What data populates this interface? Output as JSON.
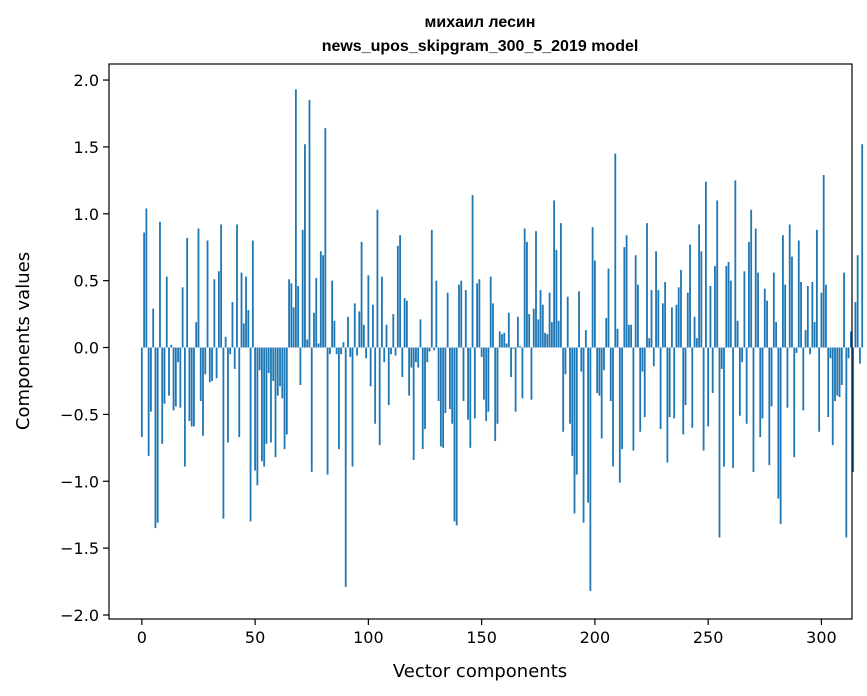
{
  "chart_data": {
    "type": "bar",
    "title": "михаил лесин",
    "subtitle": "news_upos_skipgram_300_5_2019 model",
    "xlabel": "Vector components",
    "ylabel": "Components values",
    "xlim": [
      -14.5,
      313.5
    ],
    "ylim": [
      -2.03,
      2.12
    ],
    "xticks": [
      0,
      50,
      100,
      150,
      200,
      250,
      300
    ],
    "yticks": [
      -2.0,
      -1.5,
      -1.0,
      -0.5,
      0.0,
      0.5,
      1.0,
      1.5,
      2.0
    ],
    "ytick_labels": [
      "−2.0",
      "−1.5",
      "−1.0",
      "−0.5",
      "0.0",
      "0.5",
      "1.0",
      "1.5",
      "2.0"
    ],
    "bar_color": "#1f77b4",
    "grid": false,
    "values": [
      -0.67,
      0.86,
      1.04,
      -0.81,
      -0.48,
      0.29,
      -1.35,
      -1.31,
      0.94,
      -0.72,
      -0.42,
      0.53,
      -0.36,
      0.02,
      -0.47,
      -0.44,
      -0.11,
      -0.45,
      0.45,
      -0.89,
      0.82,
      -0.55,
      -0.59,
      -0.59,
      0.19,
      0.89,
      -0.4,
      -0.66,
      -0.2,
      0.8,
      -0.26,
      -0.25,
      0.51,
      -0.23,
      0.57,
      0.92,
      -1.28,
      0.08,
      -0.71,
      -0.05,
      0.34,
      -0.16,
      0.92,
      -0.67,
      0.56,
      0.18,
      0.53,
      0.28,
      -1.3,
      0.8,
      -0.92,
      -1.03,
      -0.17,
      -0.85,
      -0.89,
      -0.72,
      -0.19,
      -0.71,
      -0.25,
      -0.82,
      -0.36,
      -0.29,
      -0.38,
      -0.76,
      -0.65,
      0.51,
      0.48,
      0.3,
      1.93,
      0.46,
      -0.28,
      0.88,
      1.52,
      0.06,
      1.85,
      -0.93,
      0.26,
      0.52,
      0.03,
      0.72,
      0.69,
      1.64,
      -0.95,
      -0.05,
      0.5,
      0.2,
      -0.05,
      -0.76,
      -0.05,
      0.04,
      -1.79,
      0.23,
      -0.07,
      -0.89,
      0.33,
      -0.06,
      0.27,
      0.79,
      0.17,
      -0.08,
      0.54,
      -0.29,
      0.32,
      -0.57,
      1.03,
      -0.73,
      0.53,
      -0.11,
      0.17,
      -0.43,
      -0.05,
      0.25,
      -0.06,
      0.76,
      0.84,
      -0.22,
      0.37,
      0.35,
      -0.36,
      -0.15,
      -0.84,
      -0.11,
      -0.15,
      0.21,
      -0.76,
      -0.61,
      -0.11,
      -0.03,
      0.88,
      -0.02,
      0.5,
      -0.4,
      -0.74,
      -0.75,
      -0.49,
      0.41,
      -0.46,
      -0.57,
      -1.3,
      -1.33,
      0.47,
      0.5,
      -0.4,
      0.43,
      -0.54,
      -0.75,
      1.14,
      -0.53,
      0.48,
      0.51,
      -0.07,
      -0.39,
      -0.55,
      -0.48,
      0.53,
      0.33,
      -0.7,
      -0.57,
      0.12,
      0.1,
      0.11,
      0.03,
      0.26,
      -0.22,
      -0.01,
      -0.48,
      0.23,
      0.01,
      -0.38,
      0.89,
      0.79,
      0.25,
      -0.39,
      0.29,
      0.87,
      0.21,
      0.43,
      0.32,
      0.11,
      0.1,
      0.41,
      0.19,
      1.1,
      0.73,
      0.2,
      0.93,
      -0.63,
      -0.2,
      0.38,
      -0.57,
      -0.81,
      -1.24,
      -0.95,
      0.42,
      -0.18,
      -1.31,
      0.13,
      -1.16,
      -1.82,
      0.9,
      0.65,
      -0.34,
      -0.36,
      -0.68,
      -0.17,
      0.22,
      0.59,
      -0.4,
      -0.89,
      1.45,
      0.14,
      -1.01,
      -0.76,
      0.75,
      0.84,
      0.17,
      0.17,
      -0.77,
      0.69,
      0.47,
      -0.63,
      -0.18,
      -0.52,
      0.93,
      0.07,
      0.43,
      -0.14,
      0.72,
      0.43,
      -0.61,
      0.33,
      0.49,
      -0.86,
      -0.52,
      0.3,
      -0.53,
      0.32,
      0.45,
      0.58,
      -0.65,
      -0.43,
      0.41,
      0.77,
      -0.6,
      0.23,
      0.07,
      0.92,
      0.72,
      -0.77,
      1.24,
      -0.59,
      0.46,
      -0.34,
      0.61,
      1.1,
      -1.42,
      -0.16,
      -0.89,
      0.61,
      0.64,
      0.5,
      -0.9,
      1.25,
      0.2,
      -0.51,
      -0.11,
      0.57,
      -0.57,
      0.79,
      1.03,
      -0.93,
      0.89,
      0.56,
      -0.67,
      -0.53,
      0.44,
      0.35,
      -0.88,
      -0.44,
      0.56,
      0.19,
      -1.13,
      -1.32,
      0.84,
      0.47,
      -0.45,
      0.92,
      0.68,
      -0.82,
      -0.04,
      0.8,
      0.49,
      -0.47,
      0.13,
      0.46,
      -0.05,
      0.49,
      0.19,
      0.88,
      -0.63,
      0.41,
      1.29,
      0.47,
      -0.52,
      -0.08,
      -0.73,
      -0.4,
      -0.36,
      -0.37,
      -0.28,
      0.56,
      -1.42,
      -0.08,
      0.12,
      -0.93,
      0.34,
      0.69,
      -0.12,
      1.52
    ]
  }
}
